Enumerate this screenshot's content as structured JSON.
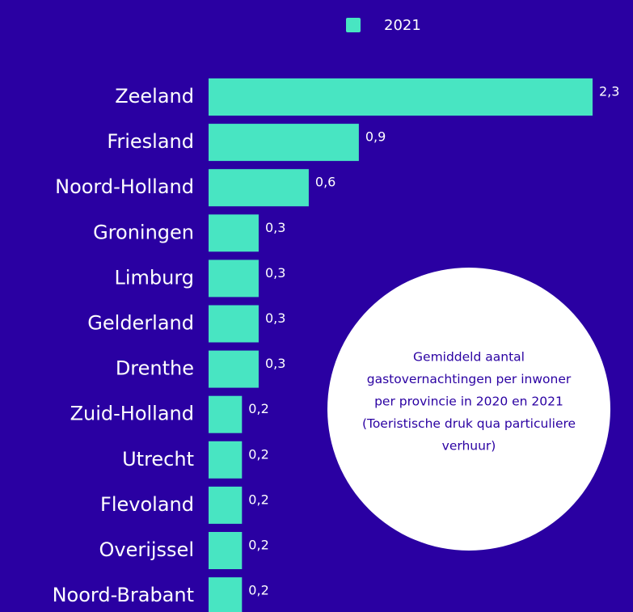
{
  "chart_data": {
    "type": "bar",
    "orientation": "horizontal",
    "categories": [
      "Zeeland",
      "Friesland",
      "Noord-Holland",
      "Groningen",
      "Limburg",
      "Gelderland",
      "Drenthe",
      "Zuid-Holland",
      "Utrecht",
      "Flevoland",
      "Overijssel",
      "Noord-Brabant"
    ],
    "series": [
      {
        "name": "2021",
        "color": "#48e5c2",
        "values": [
          2.3,
          0.9,
          0.6,
          0.3,
          0.3,
          0.3,
          0.3,
          0.2,
          0.2,
          0.2,
          0.2,
          0.2
        ],
        "value_labels": [
          "2,3",
          "0,9",
          "0,6",
          "0,3",
          "0,3",
          "0,3",
          "0,3",
          "0,2",
          "0,2",
          "0,2",
          "0,2",
          "0,2"
        ]
      }
    ],
    "legend": "top",
    "annotation": [
      "Gemiddeld aantal",
      "gastovernachtingen per inwoner",
      "per provincie in 2020 en 2021",
      "(Toeristische druk qua particuliere",
      "verhuur)"
    ]
  }
}
